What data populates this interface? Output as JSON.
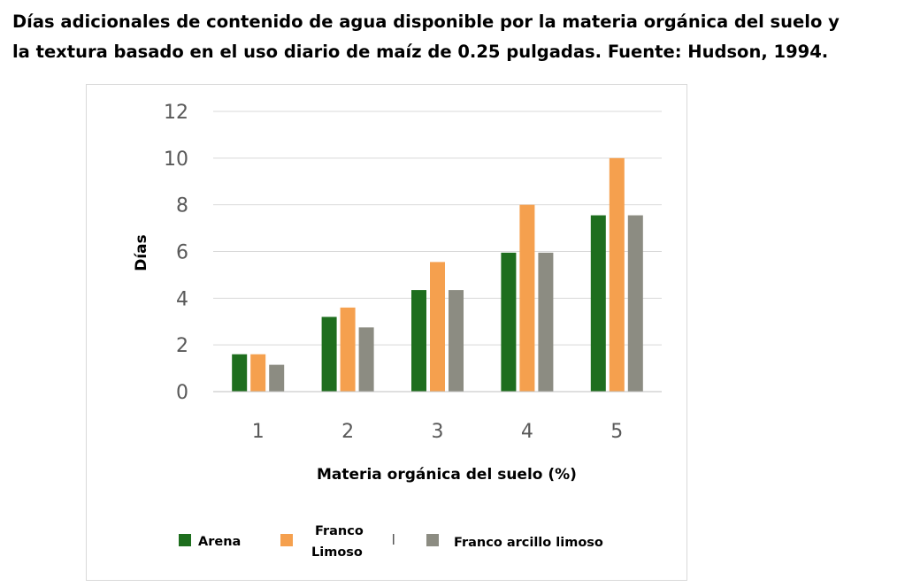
{
  "header": {
    "title_line1": "Días adicionales de contenido de agua disponible por la materia orgánica del suelo y",
    "title_line2": "la textura basado en el uso diario de maíz de 0.25 pulgadas. Fuente: Hudson, 1994."
  },
  "chart_data": {
    "type": "bar",
    "categories": [
      "1",
      "2",
      "3",
      "4",
      "5"
    ],
    "series": [
      {
        "name": "Arena",
        "color": "#1e6e1e",
        "values": [
          1.6,
          3.2,
          4.35,
          5.95,
          7.55
        ]
      },
      {
        "name": "Franco Limoso",
        "color": "#f5a04e",
        "values": [
          1.6,
          3.6,
          5.55,
          8.0,
          10.0
        ]
      },
      {
        "name": "Franco arcillo limoso",
        "color": "#8c8c82",
        "values": [
          1.15,
          2.75,
          4.35,
          5.95,
          7.55
        ]
      }
    ],
    "ylim": [
      0,
      12
    ],
    "yticks": [
      "0",
      "2",
      "4",
      "6",
      "8",
      "10",
      "12"
    ],
    "xlabel": "Materia orgánica del suelo (%)",
    "ylabel": "Días",
    "grid": true,
    "legend_position": "bottom",
    "legend_labels": {
      "arena": "Arena",
      "franco_line1": "Franco",
      "franco_line2": "Limoso",
      "franco_arcillo": "Franco arcillo limoso"
    }
  }
}
